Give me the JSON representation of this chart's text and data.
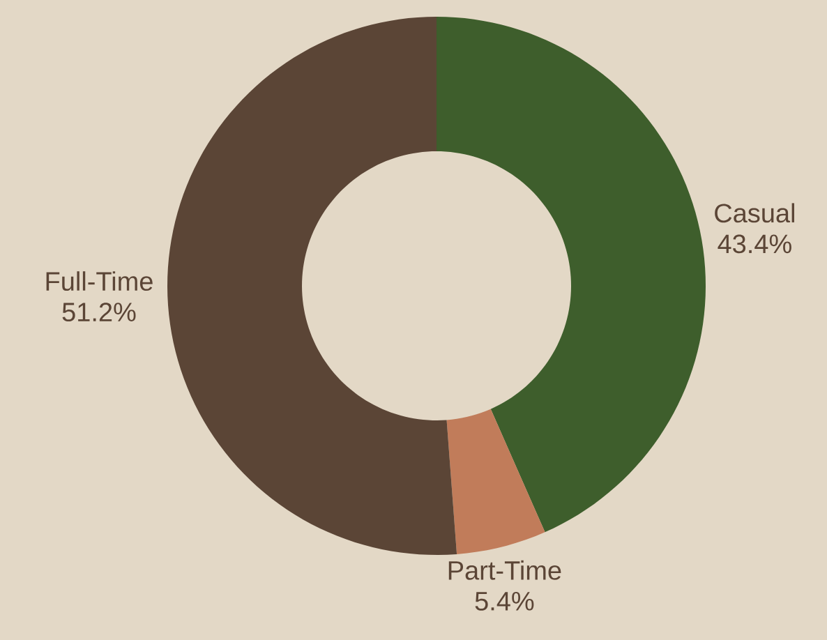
{
  "chart_data": {
    "type": "donut",
    "categories": [
      "Casual",
      "Part-Time",
      "Full-Time"
    ],
    "values": [
      43.4,
      5.4,
      51.2
    ],
    "value_labels": [
      "43.4%",
      "5.4%",
      "51.2%"
    ],
    "colors": [
      "#3e5e2c",
      "#c17c5a",
      "#5b4536"
    ]
  }
}
